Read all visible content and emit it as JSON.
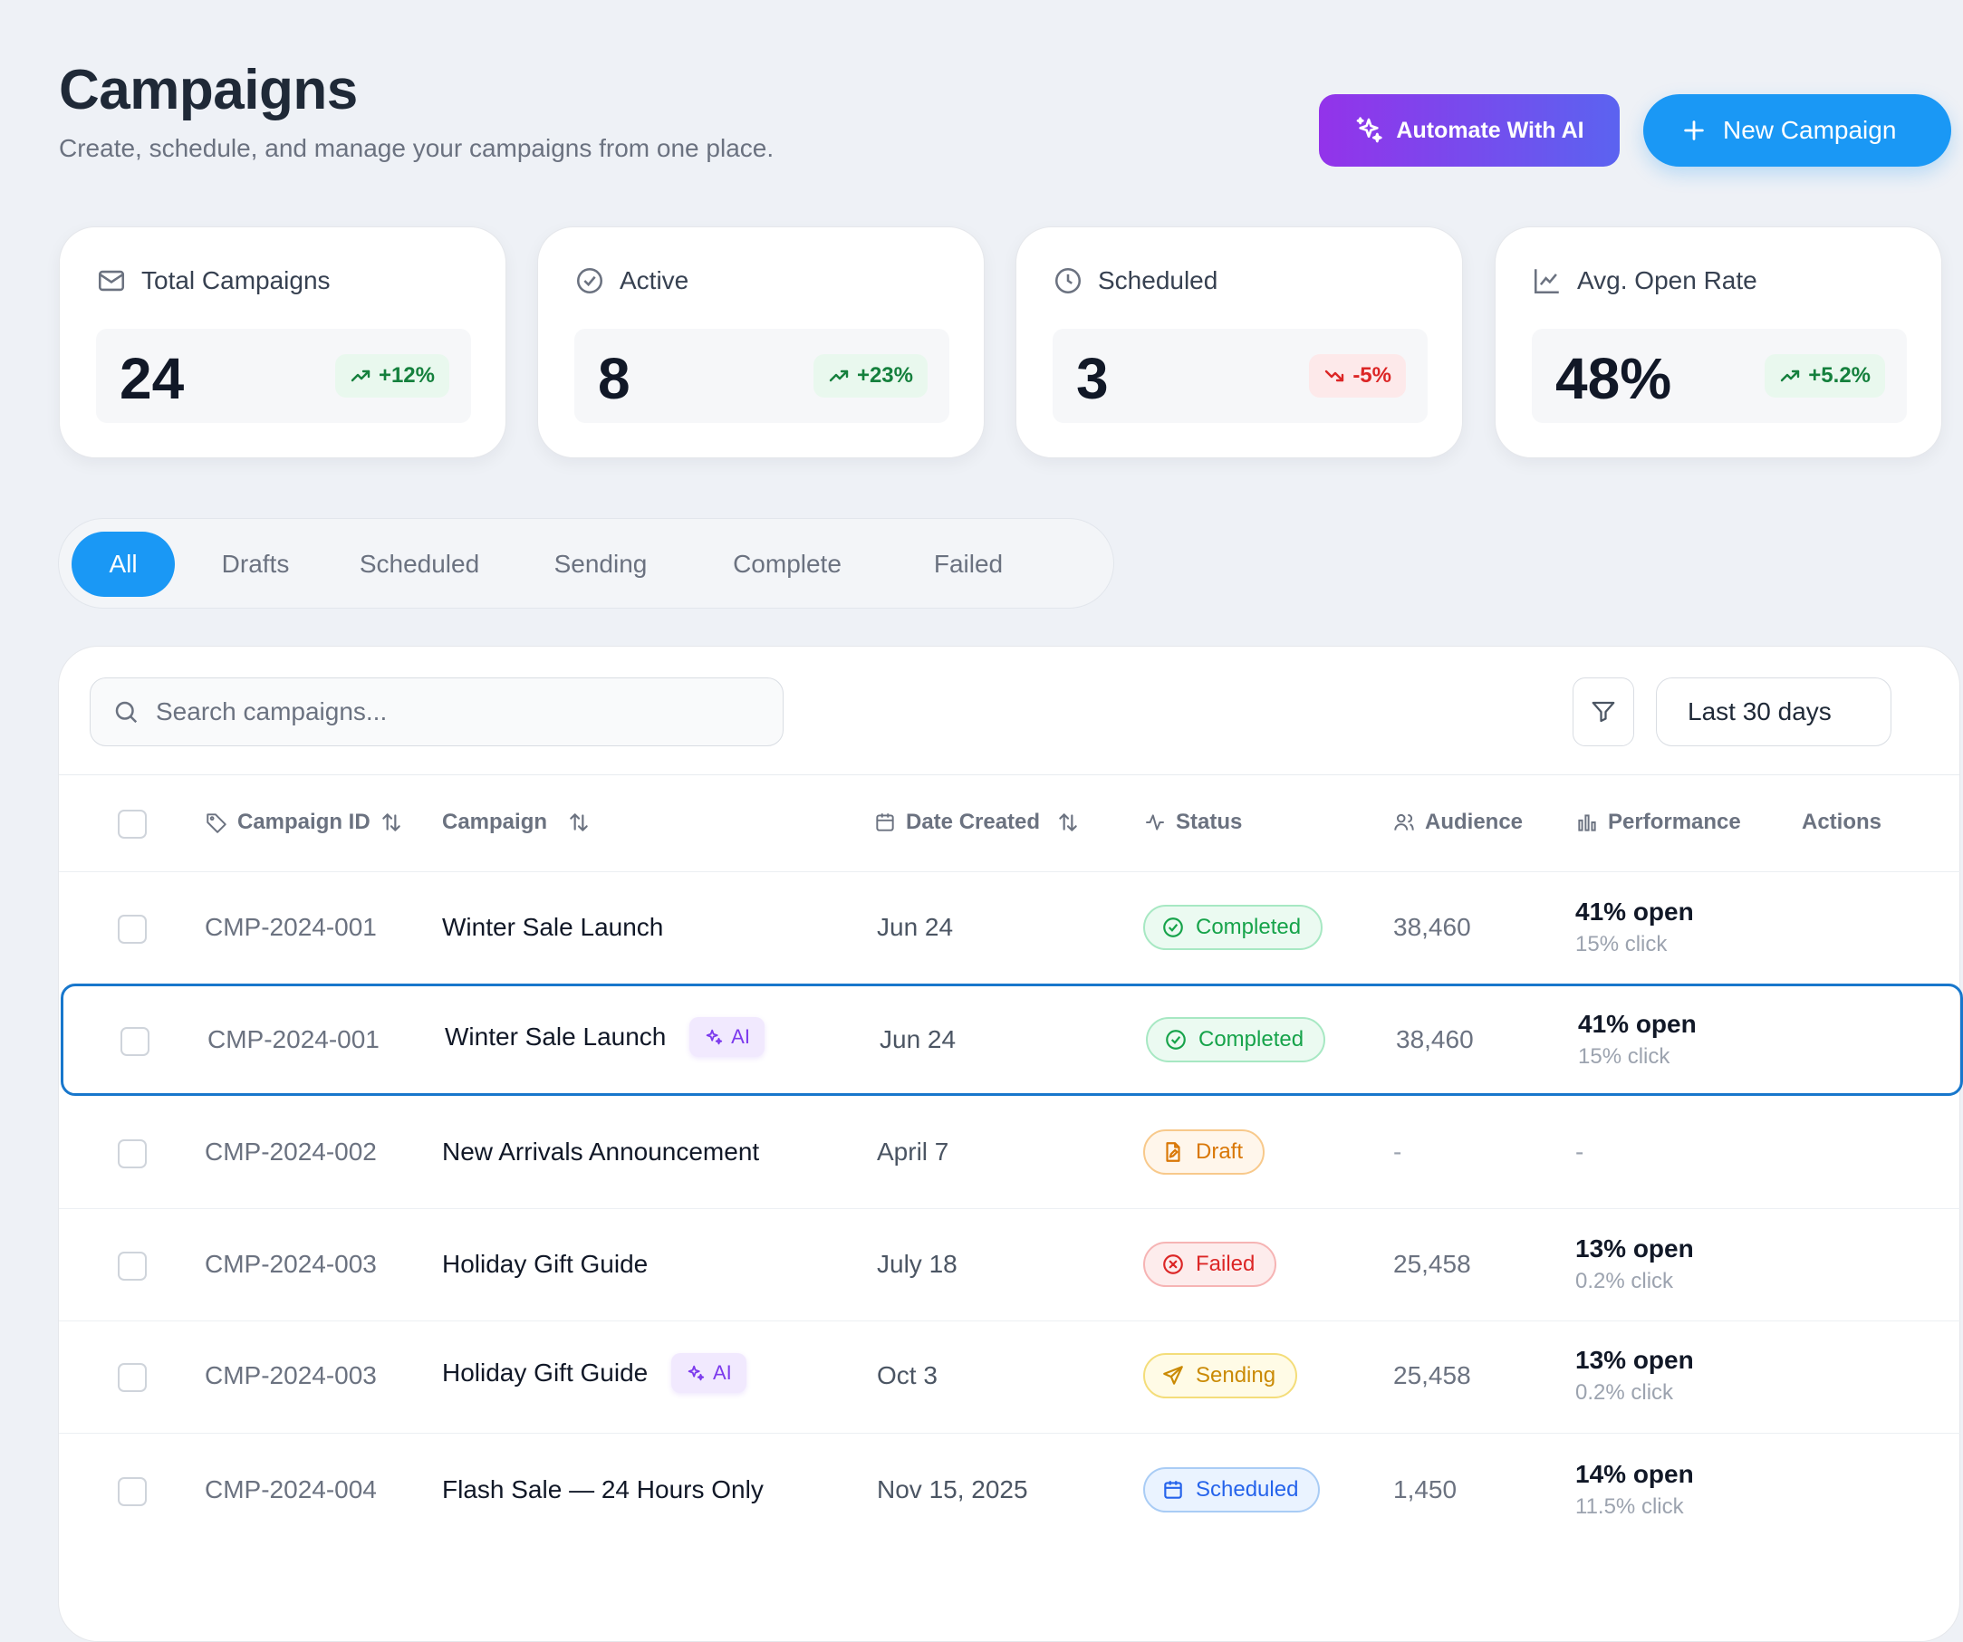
{
  "header": {
    "title": "Campaigns",
    "subtitle": "Create, schedule, and manage your campaigns from one place.",
    "automate_label": "Automate With AI",
    "new_label": "New Campaign"
  },
  "stats": [
    {
      "label": "Total Campaigns",
      "value": "24",
      "delta": "+12%",
      "trend": "up",
      "icon": "mail-icon"
    },
    {
      "label": "Active",
      "value": "8",
      "delta": "+23%",
      "trend": "up",
      "icon": "check-circle-icon"
    },
    {
      "label": "Scheduled",
      "value": "3",
      "delta": "-5%",
      "trend": "down",
      "icon": "clock-icon"
    },
    {
      "label": "Avg. Open Rate",
      "value": "48%",
      "delta": "+5.2%",
      "trend": "up",
      "icon": "line-chart-icon"
    }
  ],
  "tabs": [
    "All",
    "Drafts",
    "Scheduled",
    "Sending",
    "Complete",
    "Failed"
  ],
  "active_tab": "All",
  "toolbar": {
    "search_placeholder": "Search campaigns...",
    "date_range": "Last 30 days"
  },
  "columns": {
    "id": "Campaign ID",
    "campaign": "Campaign",
    "date": "Date Created",
    "status": "Status",
    "audience": "Audience",
    "performance": "Performance",
    "actions": "Actions"
  },
  "rows": [
    {
      "id": "CMP-2024-001",
      "name": "Winter Sale Launch",
      "ai": false,
      "date": "Jun 24",
      "status": "Completed",
      "audience": "38,460",
      "open": "41% open",
      "click": "15% click"
    },
    {
      "id": "CMP-2024-001",
      "name": "Winter Sale Launch",
      "ai": true,
      "ai_label": "AI",
      "date": "Jun 24",
      "status": "Completed",
      "audience": "38,460",
      "open": "41% open",
      "click": "15% click",
      "selected": true
    },
    {
      "id": "CMP-2024-002",
      "name": "New Arrivals Announcement",
      "ai": false,
      "date": "April 7",
      "status": "Draft",
      "audience": "-",
      "open": "-",
      "click": ""
    },
    {
      "id": "CMP-2024-003",
      "name": "Holiday Gift Guide",
      "ai": false,
      "date": "July 18",
      "status": "Failed",
      "audience": "25,458",
      "open": "13% open",
      "click": "0.2% click"
    },
    {
      "id": "CMP-2024-003",
      "name": "Holiday Gift Guide",
      "ai": true,
      "ai_label": "AI",
      "date": "Oct 3",
      "status": "Sending",
      "audience": "25,458",
      "open": "13% open",
      "click": "0.2% click"
    },
    {
      "id": "CMP-2024-004",
      "name": "Flash Sale — 24 Hours Only",
      "ai": false,
      "date": "Nov 15, 2025",
      "status": "Scheduled",
      "audience": "1,450",
      "open": "14% open",
      "click": "11.5% click"
    }
  ],
  "colors": {
    "primary": "#1a98f5",
    "ai_gradient_start": "#9333ea",
    "ai_gradient_end": "#5b63f0",
    "selected_border": "#1877cc"
  }
}
